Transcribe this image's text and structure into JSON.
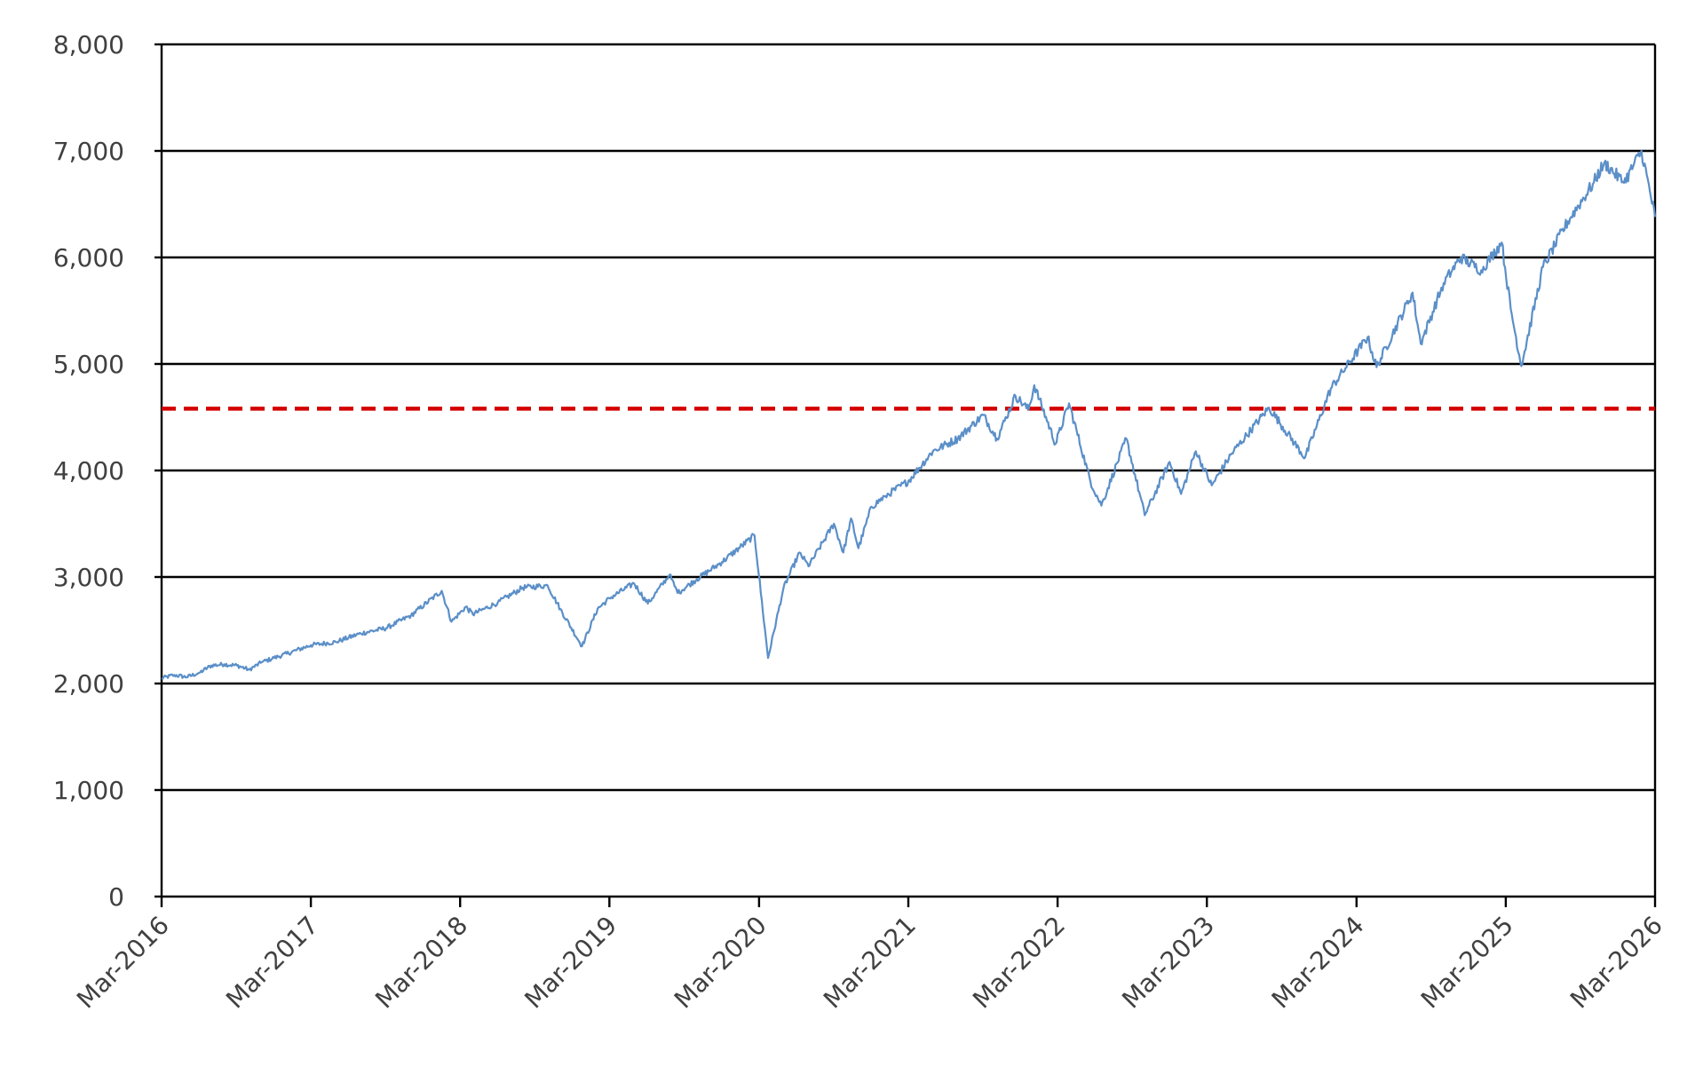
{
  "chart_data": {
    "type": "line",
    "title": "",
    "xlabel": "",
    "ylabel": "",
    "ylim": [
      0,
      8000
    ],
    "xlim": [
      "2016-03",
      "2026-03"
    ],
    "yticks": [
      0,
      1000,
      2000,
      3000,
      4000,
      5000,
      6000,
      7000,
      8000
    ],
    "ytick_labels": [
      "0",
      "1,000",
      "2,000",
      "3,000",
      "4,000",
      "5,000",
      "6,000",
      "7,000",
      "8,000"
    ],
    "xtick_labels": [
      "Mar-2016",
      "Mar-2017",
      "Mar-2018",
      "Mar-2019",
      "Mar-2020",
      "Mar-2021",
      "Mar-2022",
      "Mar-2023",
      "Mar-2024",
      "Mar-2025",
      "Mar-2026"
    ],
    "grid": "horizontal",
    "legend": "none",
    "series": [
      {
        "color": "#5b8fc8",
        "x": [
          "2016-03-01",
          "2016-04-01",
          "2016-05-01",
          "2016-06-01",
          "2016-07-01",
          "2016-08-01",
          "2016-09-01",
          "2016-10-01",
          "2016-11-01",
          "2016-12-01",
          "2017-01-01",
          "2017-03-01",
          "2017-05-01",
          "2017-07-01",
          "2017-09-01",
          "2017-11-01",
          "2018-01-15",
          "2018-02-08",
          "2018-03-15",
          "2018-04-01",
          "2018-06-01",
          "2018-08-01",
          "2018-10-01",
          "2018-11-01",
          "2018-12-24",
          "2019-01-31",
          "2019-03-01",
          "2019-04-30",
          "2019-06-03",
          "2019-07-26",
          "2019-08-15",
          "2019-10-01",
          "2019-12-01",
          "2020-02-19",
          "2020-03-23",
          "2020-04-30",
          "2020-06-08",
          "2020-06-30",
          "2020-08-31",
          "2020-09-23",
          "2020-10-12",
          "2020-10-30",
          "2020-12-01",
          "2021-01-04",
          "2021-03-01",
          "2021-04-30",
          "2021-06-30",
          "2021-08-31",
          "2021-10-04",
          "2021-11-18",
          "2021-12-20",
          "2022-01-03",
          "2022-02-24",
          "2022-03-29",
          "2022-05-20",
          "2022-06-16",
          "2022-08-16",
          "2022-09-30",
          "2022-11-30",
          "2022-12-28",
          "2023-02-02",
          "2023-03-13",
          "2023-05-01",
          "2023-07-31",
          "2023-10-27",
          "2023-12-29",
          "2024-03-28",
          "2024-04-19",
          "2024-07-16",
          "2024-08-05",
          "2024-09-30",
          "2024-11-11",
          "2024-12-31",
          "2025-02-19",
          "2025-03-13",
          "2025-04-08",
          "2025-05-31",
          "2025-07-31",
          "2025-09-30",
          "2025-10-28",
          "2025-12-15",
          "2026-01-27",
          "2026-03-01"
        ],
        "y": [
          2050,
          2080,
          2060,
          2100,
          2170,
          2180,
          2170,
          2130,
          2200,
          2240,
          2280,
          2360,
          2390,
          2470,
          2520,
          2640,
          2870,
          2580,
          2720,
          2650,
          2760,
          2900,
          2920,
          2700,
          2350,
          2700,
          2800,
          2940,
          2750,
          3020,
          2850,
          2980,
          3140,
          3390,
          2240,
          2900,
          3230,
          3100,
          3500,
          3230,
          3550,
          3270,
          3660,
          3760,
          3900,
          4180,
          4300,
          4520,
          4300,
          4700,
          4570,
          4800,
          4250,
          4630,
          3900,
          3670,
          4300,
          3580,
          4080,
          3780,
          4180,
          3860,
          4160,
          4590,
          4120,
          4770,
          5250,
          4970,
          5670,
          5190,
          5760,
          6000,
          5880,
          6140,
          5520,
          4980,
          5910,
          6340,
          6690,
          6890,
          6700,
          7000,
          6380
        ]
      }
    ],
    "reference_lines": [
      {
        "y": 4580,
        "color": "#d40000",
        "style": "dashed"
      }
    ]
  }
}
